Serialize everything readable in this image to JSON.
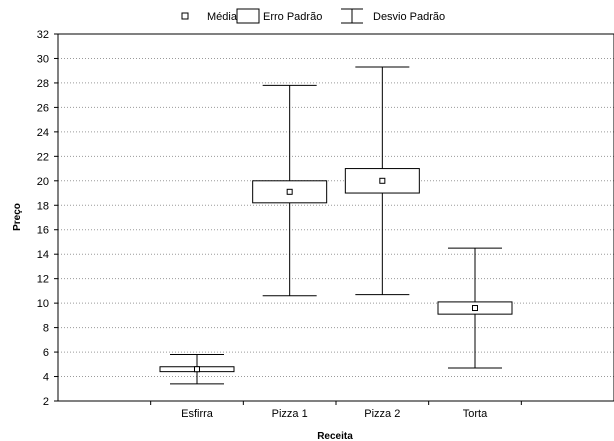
{
  "chart_data": {
    "type": "box",
    "xlabel": "Receita",
    "ylabel": "Preço",
    "ylim": [
      2,
      32
    ],
    "yticks": [
      2,
      4,
      6,
      8,
      10,
      12,
      14,
      16,
      18,
      20,
      22,
      24,
      26,
      28,
      30,
      32
    ],
    "grid": true,
    "legend_position": "top-center",
    "legend": [
      "Média",
      "Erro Padrão",
      "Desvio Padrão"
    ],
    "categories": [
      "Esfirra",
      "Pizza 1",
      "Pizza 2",
      "Torta"
    ],
    "mean": [
      4.6,
      19.1,
      20.0,
      9.6
    ],
    "se_low": [
      4.4,
      18.2,
      19.0,
      9.1
    ],
    "se_high": [
      4.8,
      20.0,
      21.0,
      10.1
    ],
    "sd_low": [
      3.4,
      10.6,
      10.7,
      4.7
    ],
    "sd_high": [
      5.8,
      27.8,
      29.3,
      14.5
    ]
  }
}
